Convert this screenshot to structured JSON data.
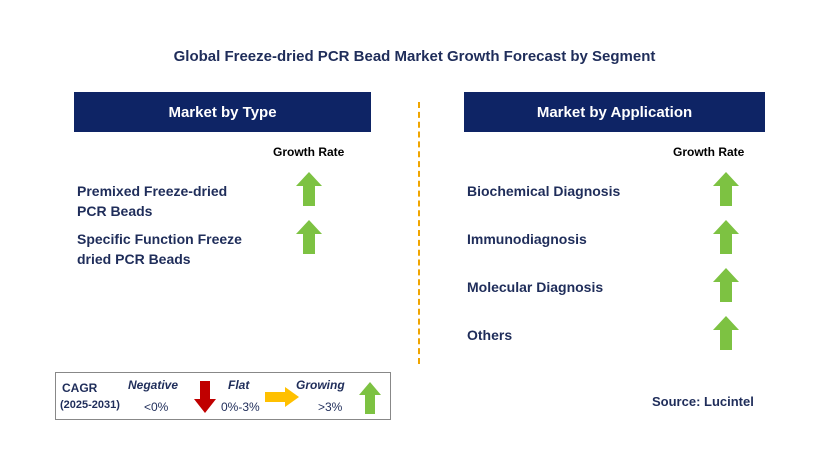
{
  "title": "Global Freeze-dried PCR Bead Market Growth Forecast by Segment",
  "left_panel": {
    "header": "Market by Type",
    "growth_rate_label": "Growth Rate",
    "items": [
      {
        "line1": "Premixed Freeze-dried",
        "line2": "PCR Beads",
        "trend": "growing"
      },
      {
        "line1": "Specific Function Freeze",
        "line2": "dried PCR Beads",
        "trend": "growing"
      }
    ]
  },
  "right_panel": {
    "header": "Market by Application",
    "growth_rate_label": "Growth Rate",
    "items": [
      {
        "label": "Biochemical Diagnosis",
        "trend": "growing"
      },
      {
        "label": "Immunodiagnosis",
        "trend": "growing"
      },
      {
        "label": "Molecular Diagnosis",
        "trend": "growing"
      },
      {
        "label": "Others",
        "trend": "growing"
      }
    ]
  },
  "legend": {
    "cagr_label": "CAGR",
    "period": "(2025-2031)",
    "negative_label": "Negative",
    "negative_value": "<0%",
    "flat_label": "Flat",
    "flat_value": "0%-3%",
    "growing_label": "Growing",
    "growing_value": ">3%"
  },
  "source": "Source: Lucintel",
  "colors": {
    "header_bg": "#0e2465",
    "text": "#1f2d5a",
    "growing": "#7dc242",
    "negative": "#c00000",
    "flat": "#ffc000",
    "divider": "#f0a500"
  }
}
